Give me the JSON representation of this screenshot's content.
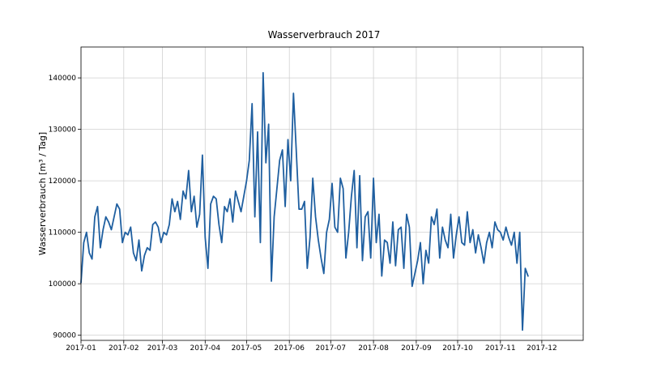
{
  "chart_data": {
    "type": "line",
    "title": "Wasserverbrauch 2017",
    "xlabel": "",
    "ylabel": "Wasserverbrauch [m³ / Tag]",
    "xlim": [
      "2017-01-01",
      "2017-12-31"
    ],
    "ylim": [
      89000,
      146000
    ],
    "grid": true,
    "line_color": "#1f5fa0",
    "x_ticks": [
      "2017-01",
      "2017-02",
      "2017-03",
      "2017-04",
      "2017-05",
      "2017-06",
      "2017-07",
      "2017-08",
      "2017-09",
      "2017-10",
      "2017-11",
      "2017-12"
    ],
    "y_ticks": [
      90000,
      100000,
      110000,
      120000,
      130000,
      140000
    ],
    "y_tick_labels": [
      "90000",
      "100000",
      "110000",
      "120000",
      "130000",
      "140000"
    ],
    "series": [
      {
        "x_start": "2017-01-01",
        "x_step_days": 2,
        "values": [
          100200,
          108000,
          110000,
          106000,
          104800,
          113000,
          115000,
          107000,
          110500,
          113000,
          112000,
          110500,
          113000,
          115500,
          114500,
          108000,
          110000,
          109500,
          111000,
          106000,
          104500,
          108500,
          102500,
          105500,
          107000,
          106500,
          111500,
          112000,
          111000,
          108000,
          110000,
          109500,
          111500,
          116500,
          114000,
          116000,
          112500,
          118000,
          116500,
          122000,
          114000,
          117000,
          111000,
          113500,
          125000,
          109000,
          103000,
          115500,
          117000,
          116500,
          111500,
          108000,
          115000,
          114000,
          116500,
          112000,
          118000,
          116000,
          114000,
          117000,
          120000,
          124000,
          135000,
          113000,
          129500,
          108000,
          141000,
          123500,
          131000,
          100500,
          113000,
          118500,
          124000,
          126000,
          115000,
          128000,
          120000,
          137000,
          126000,
          114500,
          114500,
          116000,
          103000,
          109000,
          120500,
          113000,
          108500,
          105000,
          102000,
          110000,
          112500,
          119500,
          111000,
          110000,
          120500,
          118500,
          105000,
          110000,
          117000,
          122000,
          107000,
          121000,
          104500,
          113000,
          114000,
          105000,
          120500,
          108000,
          113500,
          101500,
          108500,
          108000,
          104000,
          112000,
          103500,
          110500,
          111000,
          103000,
          113500,
          111000,
          99500,
          102000,
          104500,
          108000,
          100000,
          106500,
          104000,
          113000,
          111500,
          114500,
          105000,
          111000,
          108500,
          107000,
          113500,
          105000,
          109500,
          113000,
          108000,
          107500,
          114000,
          108000,
          110500,
          106000,
          109500,
          107000,
          104000,
          108000,
          110000,
          107000,
          112000,
          110500,
          110000,
          108500,
          111000,
          109000,
          107500,
          110000,
          104000,
          110000,
          91000,
          103000,
          101500
        ]
      }
    ]
  }
}
